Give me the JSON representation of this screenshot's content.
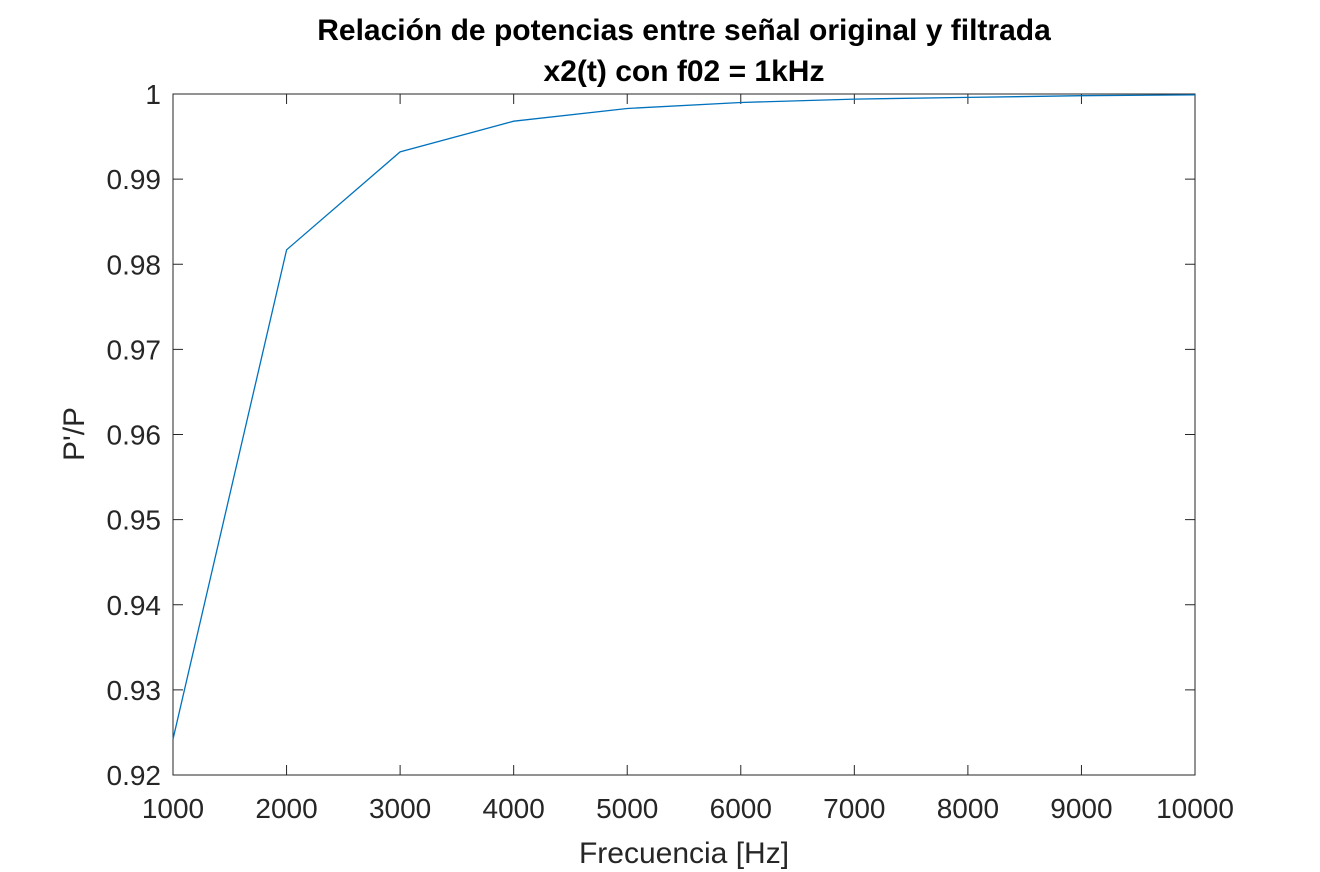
{
  "chart_data": {
    "type": "line",
    "title": "Relación de potencias entre señal original y filtrada",
    "subtitle": "x2(t) con f02 = 1kHz",
    "xlabel": "Frecuencia [Hz]",
    "ylabel": "P'/P",
    "xlim": [
      1000,
      10000
    ],
    "ylim": [
      0.92,
      1
    ],
    "xticks": [
      1000,
      2000,
      3000,
      4000,
      5000,
      6000,
      7000,
      8000,
      9000,
      10000
    ],
    "xtick_labels": [
      "1000",
      "2000",
      "3000",
      "4000",
      "5000",
      "6000",
      "7000",
      "8000",
      "9000",
      "10000"
    ],
    "yticks": [
      0.92,
      0.93,
      0.94,
      0.95,
      0.96,
      0.97,
      0.98,
      0.99,
      1
    ],
    "ytick_labels": [
      "0.92",
      "0.93",
      "0.94",
      "0.95",
      "0.96",
      "0.97",
      "0.98",
      "0.99",
      "1"
    ],
    "grid": false,
    "series": [
      {
        "color": "#0072bd",
        "x": [
          1000,
          2000,
          3000,
          4000,
          5000,
          6000,
          7000,
          8000,
          9000,
          10000
        ],
        "y": [
          0.9242,
          0.9817,
          0.9932,
          0.9968,
          0.9983,
          0.999,
          0.9994,
          0.9996,
          0.9998,
          0.9999
        ]
      }
    ]
  }
}
